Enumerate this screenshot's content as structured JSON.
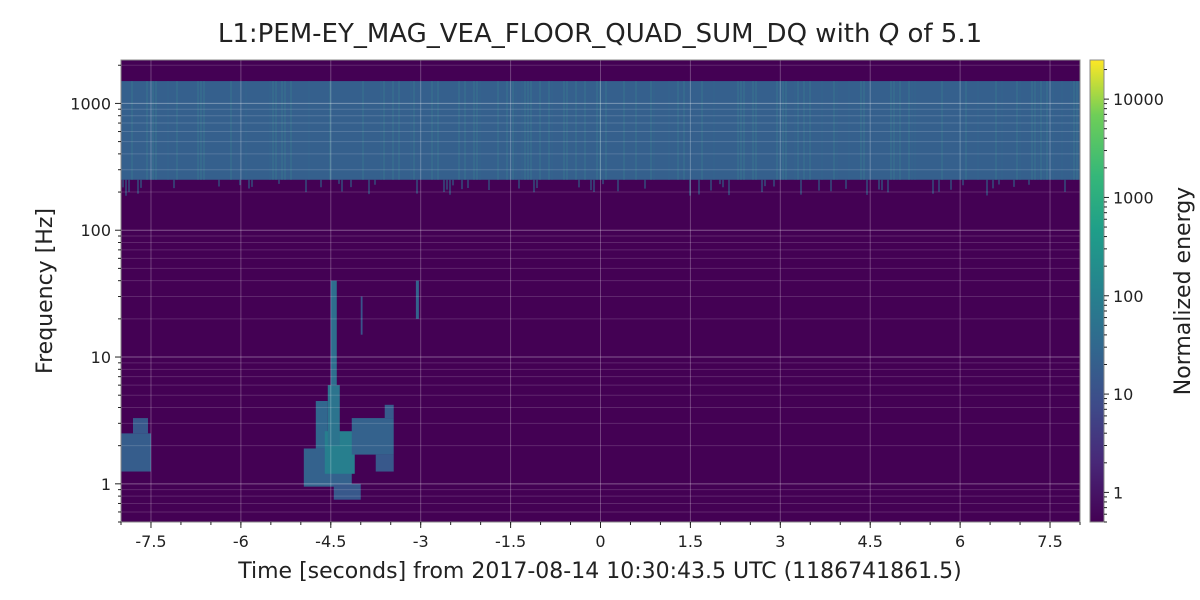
{
  "chart_data": {
    "type": "heatmap",
    "title_parts": [
      "L1:PEM-EY_MAG_VEA_FLOOR_QUAD_SUM_DQ with ",
      "Q",
      " of 5.1"
    ],
    "xlabel": "Time [seconds] from 2017-08-14 10:30:43.5 UTC (1186741861.5)",
    "ylabel": "Frequency [Hz]",
    "colorbar_label": "Normalized energy",
    "x_ticks": [
      "-7.5",
      "-6",
      "-4.5",
      "-3",
      "-1.5",
      "0",
      "1.5",
      "3",
      "4.5",
      "6",
      "7.5"
    ],
    "x_tick_values": [
      -7.5,
      -6,
      -4.5,
      -3,
      -1.5,
      0,
      1.5,
      3,
      4.5,
      6,
      7.5
    ],
    "y_ticks": [
      "1",
      "10",
      "100",
      "1000"
    ],
    "y_tick_values": [
      1,
      10,
      100,
      1000
    ],
    "colorbar_ticks": [
      "1",
      "10",
      "100",
      "1000",
      "10000"
    ],
    "colorbar_tick_values": [
      1,
      10,
      100,
      1000,
      10000
    ],
    "xlim": [
      -8,
      8
    ],
    "ylim": [
      0.5,
      2200
    ],
    "clim": [
      0.5,
      25000
    ],
    "yscale": "log",
    "cscale": "log",
    "colormap": "viridis",
    "background_color": "#440154",
    "regions": [
      {
        "t0": -8.0,
        "t1": -7.5,
        "f0": 1.25,
        "f1": 2.5,
        "energy": 18
      },
      {
        "t0": -7.8,
        "t1": -7.55,
        "f0": 2.5,
        "f1": 3.3,
        "energy": 14
      },
      {
        "t0": -4.95,
        "t1": -4.15,
        "f0": 0.95,
        "f1": 1.9,
        "energy": 22
      },
      {
        "t0": -4.75,
        "t1": -4.55,
        "f0": 1.9,
        "f1": 4.5,
        "energy": 28
      },
      {
        "t0": -4.45,
        "t1": -4.0,
        "f0": 0.75,
        "f1": 1.0,
        "energy": 14
      },
      {
        "t0": -4.6,
        "t1": -4.1,
        "f0": 1.2,
        "f1": 2.6,
        "energy": 95
      },
      {
        "t0": -4.55,
        "t1": -4.35,
        "f0": 2.0,
        "f1": 6.0,
        "energy": 55
      },
      {
        "t0": -4.5,
        "t1": -4.4,
        "f0": 6.0,
        "f1": 40,
        "energy": 40
      },
      {
        "t0": -4.15,
        "t1": -3.45,
        "f0": 1.7,
        "f1": 3.3,
        "energy": 22
      },
      {
        "t0": -3.6,
        "t1": -3.45,
        "f0": 3.3,
        "f1": 4.2,
        "energy": 16
      },
      {
        "t0": -3.75,
        "t1": -3.45,
        "f0": 1.25,
        "f1": 1.7,
        "energy": 14
      },
      {
        "t0": -4.0,
        "t1": -3.97,
        "f0": 15,
        "f1": 30,
        "energy": 12
      },
      {
        "t0": -3.08,
        "t1": -3.03,
        "f0": 20,
        "f1": 40,
        "energy": 22
      },
      {
        "t0": -8.0,
        "t1": 8.0,
        "f0": 250,
        "f1": 1500,
        "energy": 20
      }
    ]
  }
}
